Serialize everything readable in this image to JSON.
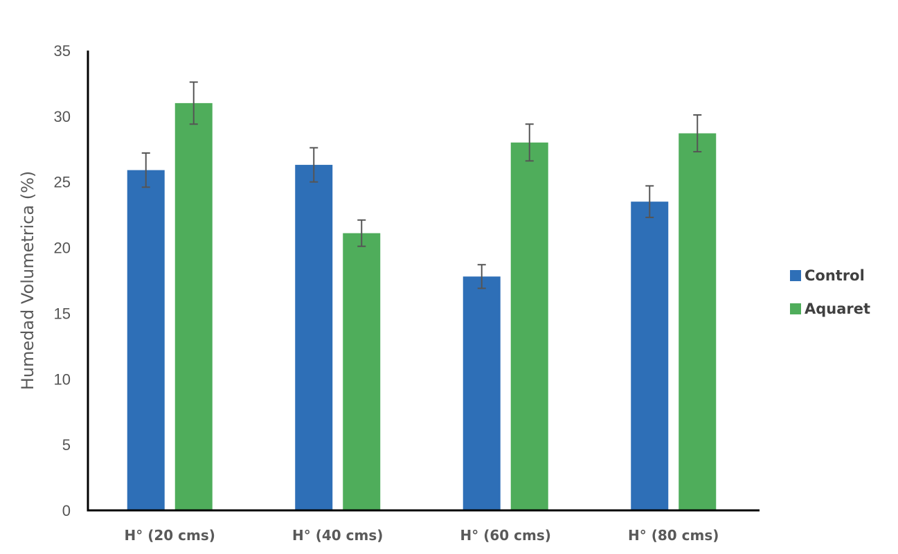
{
  "chart_data": {
    "type": "bar",
    "ylabel": "Humedad Volumetrica (%)",
    "xlabel": "",
    "ylim": [
      0,
      35
    ],
    "yticks": [
      0,
      5,
      10,
      15,
      20,
      25,
      30,
      35
    ],
    "categories": [
      "H° (20 cms)",
      "H° (40 cms)",
      "H° (60 cms)",
      "H° (80 cms)"
    ],
    "series": [
      {
        "name": "Control",
        "color": "#2e6fb7",
        "values": [
          25.9,
          26.3,
          17.8,
          23.5
        ],
        "errors": [
          1.3,
          1.3,
          0.9,
          1.2
        ]
      },
      {
        "name": "Aquaret",
        "color": "#4fad5b",
        "values": [
          31.0,
          21.1,
          28.0,
          28.7
        ],
        "errors": [
          1.6,
          1.0,
          1.4,
          1.4
        ]
      }
    ],
    "grid": false,
    "legend_position": "right"
  }
}
